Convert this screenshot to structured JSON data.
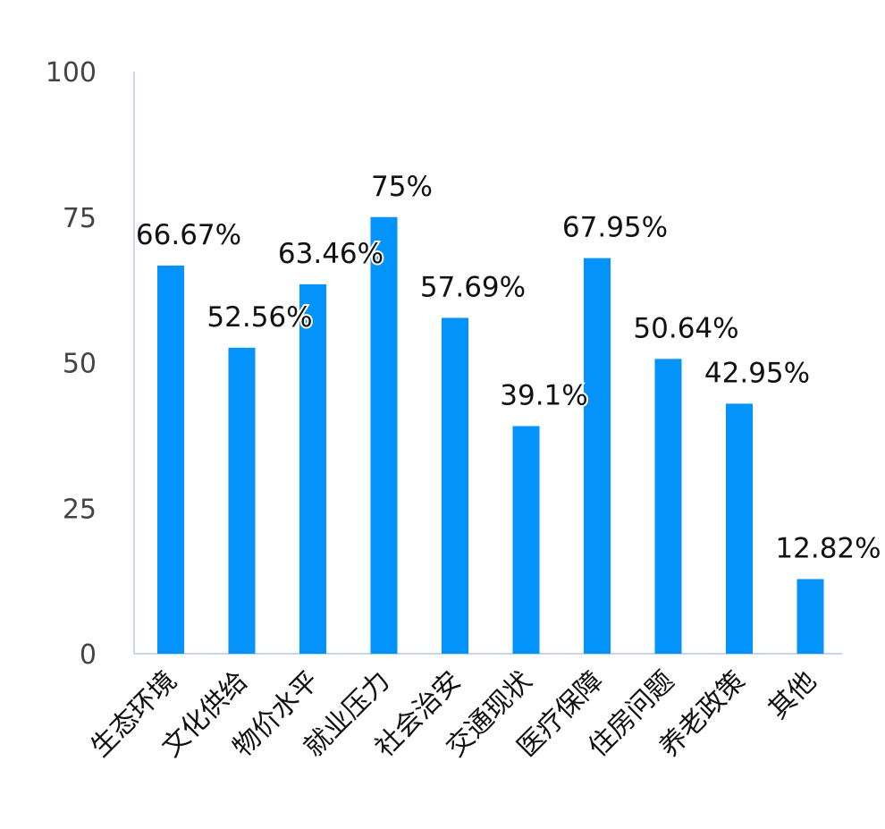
{
  "chart_data": {
    "type": "bar",
    "title": "",
    "xlabel": "",
    "ylabel": "",
    "categories": [
      "生态环境",
      "文化供给",
      "物价水平",
      "就业压力",
      "社会治安",
      "交通现状",
      "医疗保障",
      "住房问题",
      "养老政策",
      "其他"
    ],
    "values": [
      66.67,
      52.56,
      63.46,
      75,
      57.69,
      39.1,
      67.95,
      50.64,
      42.95,
      12.82
    ],
    "data_labels": [
      "66.67%",
      "52.56%",
      "63.46%",
      "75%",
      "57.69%",
      "39.1%",
      "67.95%",
      "50.64%",
      "42.95%",
      "12.82%"
    ],
    "ylim": [
      0,
      100
    ],
    "yticks": [
      0,
      25,
      50,
      75,
      100
    ],
    "ytick_labels": [
      "0",
      "25",
      "50",
      "75",
      "100"
    ],
    "grid": false,
    "legend": "none",
    "colors": {
      "bar": "#0393FA",
      "axis": "#C9D6EA",
      "tick_label": "#444444",
      "data_label": "#111111"
    }
  }
}
